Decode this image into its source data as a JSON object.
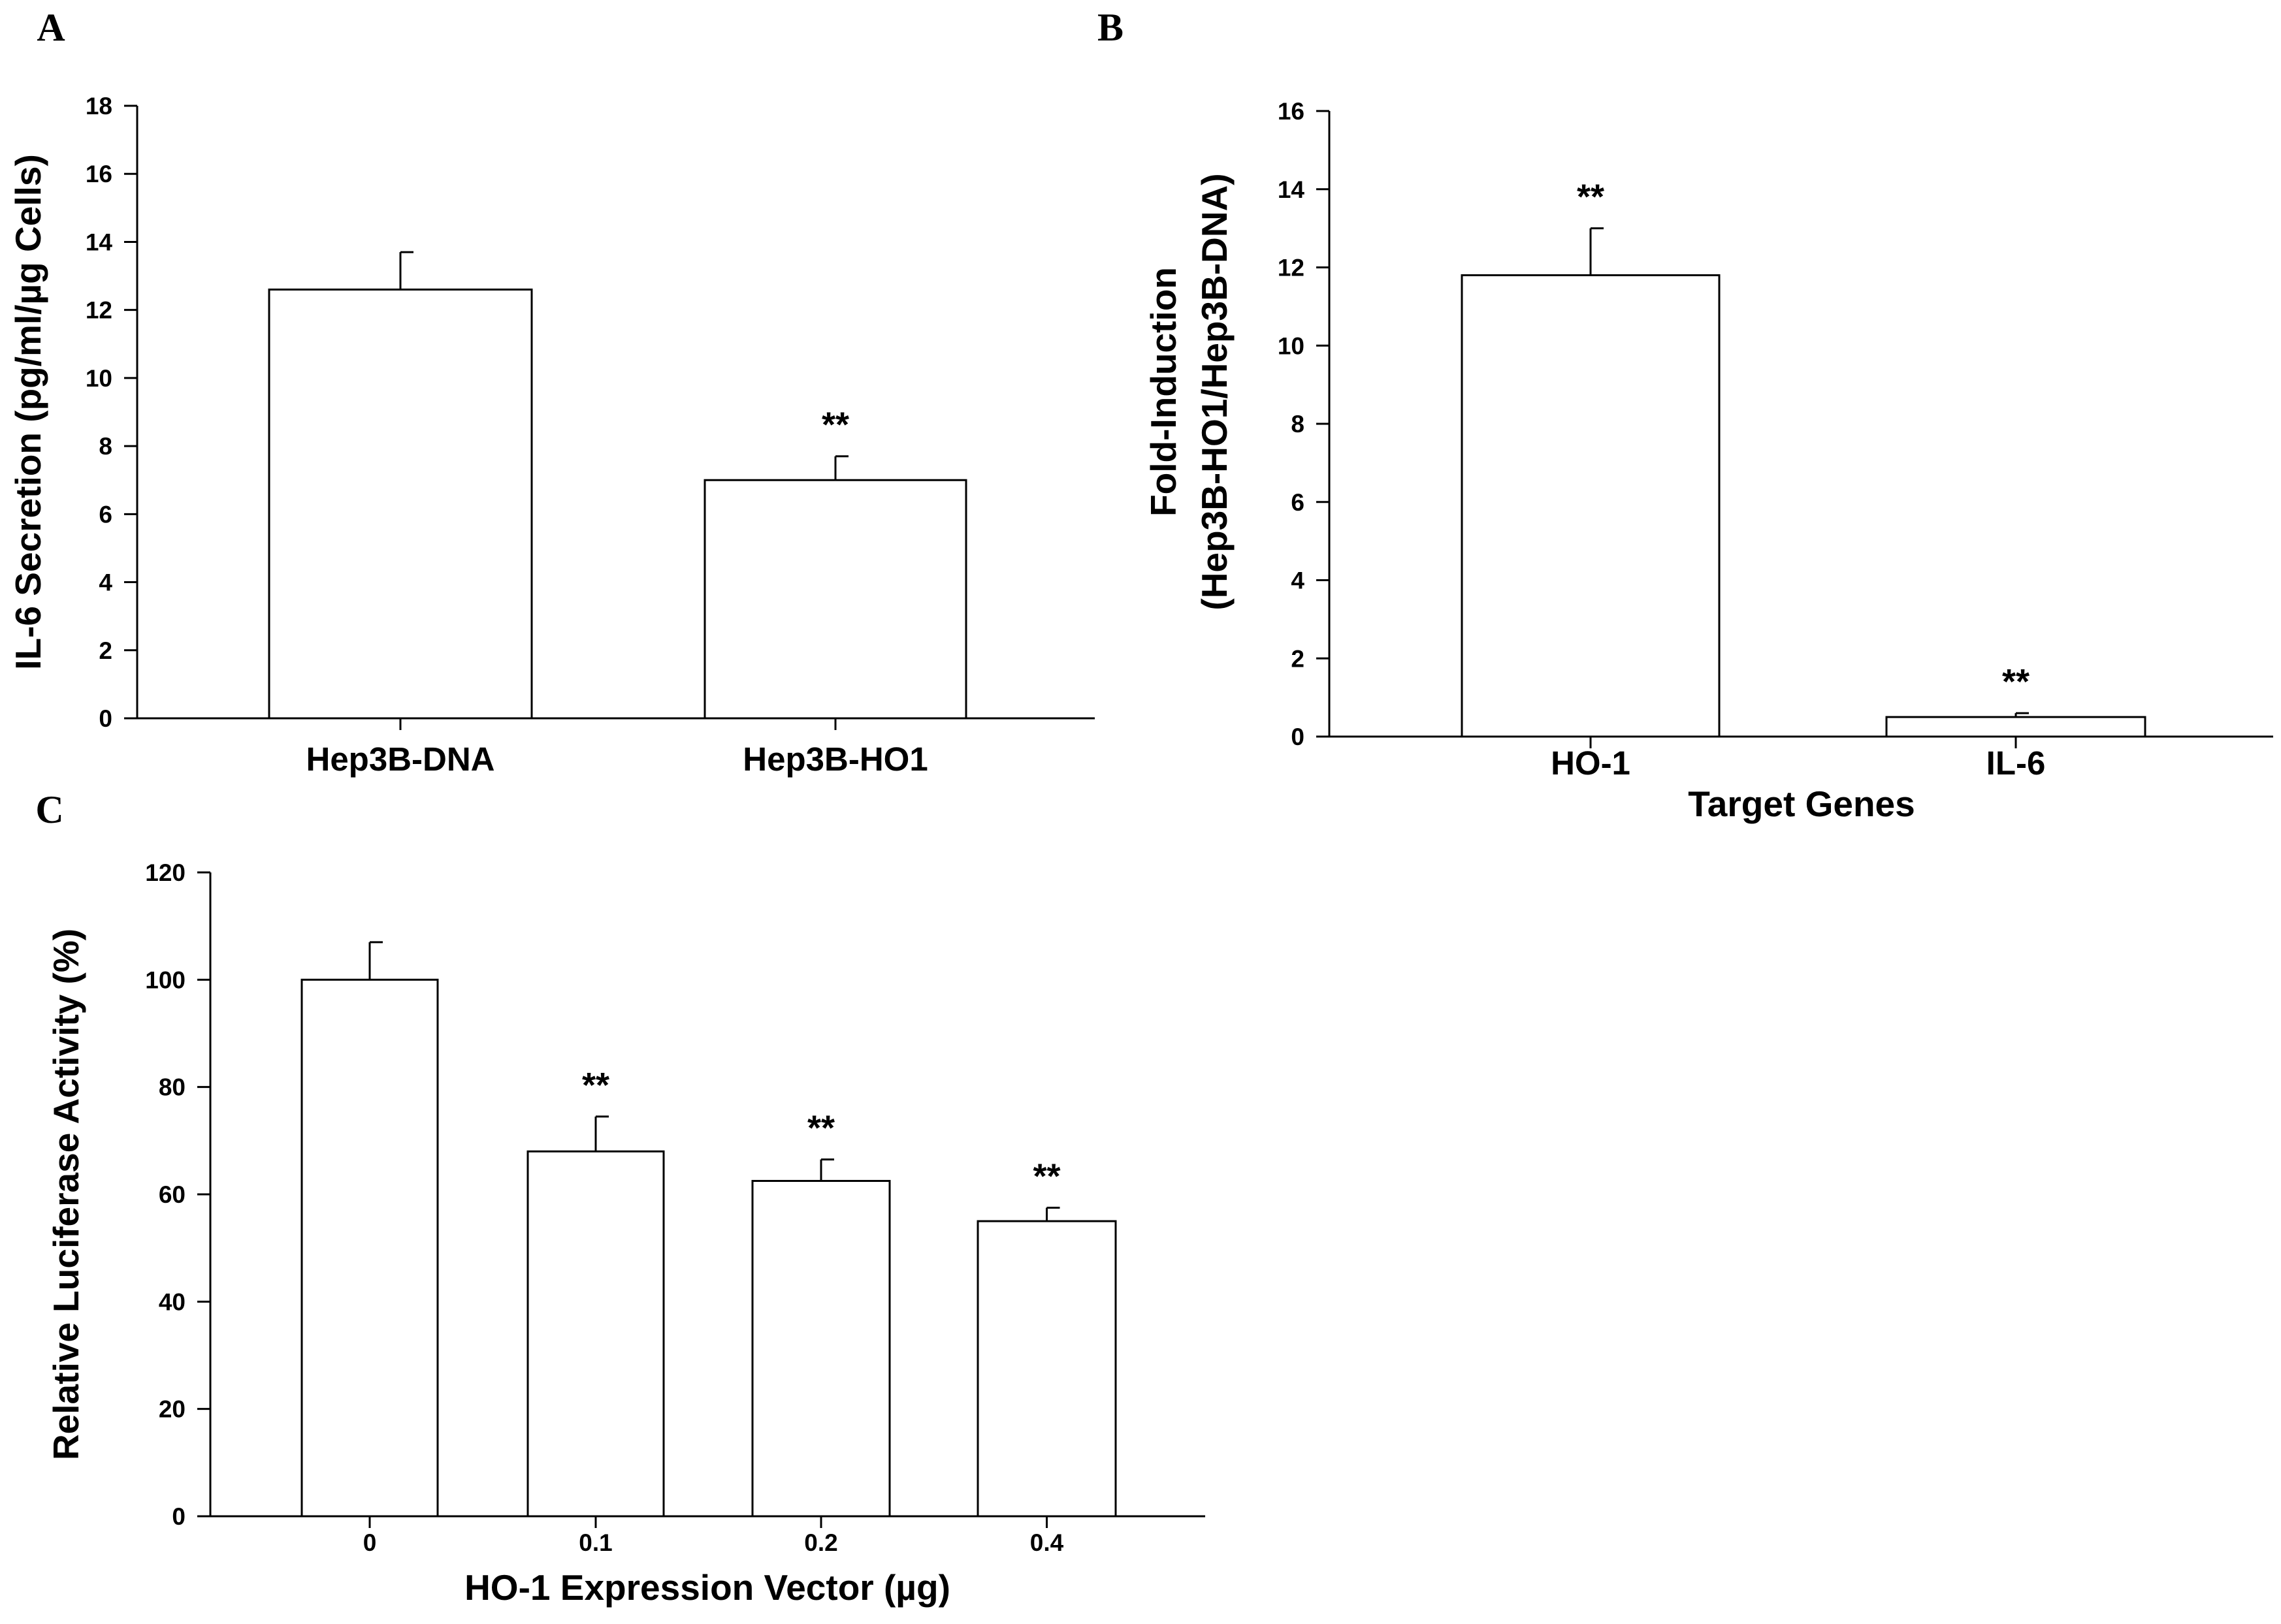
{
  "chart_data": [
    {
      "panel": "A",
      "type": "bar",
      "title": "",
      "xlabel": "",
      "ylabel": "IL-6 Secretion (pg/ml/µg Cells)",
      "ylim": [
        0,
        18
      ],
      "yticks": [
        0,
        2,
        4,
        6,
        8,
        10,
        12,
        14,
        16,
        18
      ],
      "grid": false,
      "categories": [
        "Hep3B-DNA",
        "Hep3B-HO1"
      ],
      "values": [
        12.6,
        7.0
      ],
      "errors": [
        1.1,
        0.7
      ],
      "annotations": [
        "",
        "**"
      ]
    },
    {
      "panel": "B",
      "type": "bar",
      "title": "",
      "xlabel": "Target Genes",
      "ylabel_lines": [
        "Fold-Induction",
        "(Hep3B-HO1/Hep3B-DNA)"
      ],
      "ylim": [
        0,
        16
      ],
      "yticks": [
        0,
        2,
        4,
        6,
        8,
        10,
        12,
        14,
        16
      ],
      "grid": false,
      "categories": [
        "HO-1",
        "IL-6"
      ],
      "values": [
        11.8,
        0.5
      ],
      "errors": [
        1.2,
        0.1
      ],
      "annotations": [
        "**",
        "**"
      ]
    },
    {
      "panel": "C",
      "type": "bar",
      "title": "",
      "xlabel": "HO-1 Expression Vector (µg)",
      "ylabel": "Relative Luciferase Activity (%)",
      "ylim": [
        0,
        120
      ],
      "yticks": [
        0,
        20,
        40,
        60,
        80,
        100,
        120
      ],
      "grid": false,
      "categories": [
        "0",
        "0.1",
        "0.2",
        "0.4"
      ],
      "values": [
        100,
        68,
        62.5,
        55
      ],
      "errors": [
        7,
        6.5,
        4,
        2.5
      ],
      "annotations": [
        "",
        "**",
        "**",
        "**"
      ]
    }
  ]
}
